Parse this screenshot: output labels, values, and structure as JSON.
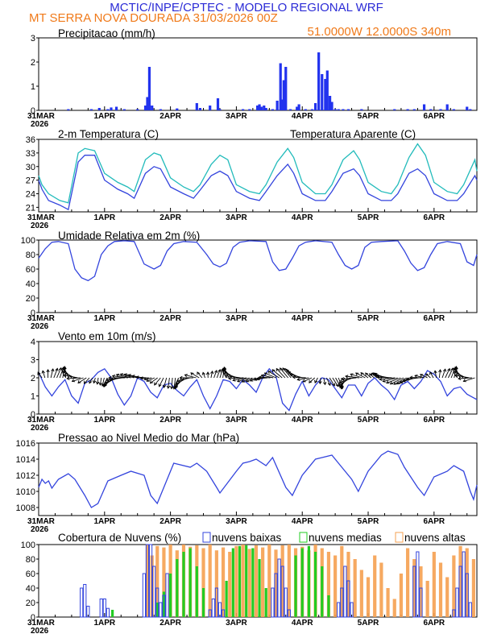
{
  "header": {
    "line1": "MCTIC/INPE/CPTEC - MODELO REGIONAL WRF",
    "line2": "MT SERRA NOVA DOURADA       31/03/2026 00Z",
    "coords": "51.0000W 12.0000S 340m"
  },
  "colors": {
    "header_blue": "#2b2bd6",
    "header_orange": "#f07a1a",
    "series_blue": "#3344dd",
    "bar_blue": "#2233ee",
    "apparent_cyan": "#22bbbb",
    "low_clouds": "#3344dd",
    "mid_clouds": "#22cc22",
    "high_clouds": "#f5a050"
  },
  "x_axis": {
    "date_labels": [
      "31MAR",
      "1APR",
      "2APR",
      "3APR",
      "4APR",
      "5APR",
      "6APR"
    ],
    "year_label": "2026",
    "days_span": 6.65
  },
  "panels": {
    "precip": {
      "title": "Precipitacao (mm/h)",
      "yticks": [
        "0",
        "1",
        "2",
        "3"
      ]
    },
    "temp": {
      "title": "2-m Temperatura (C)",
      "legend": "Temperatura Aparente (C)",
      "yticks": [
        "21",
        "24",
        "27",
        "30",
        "33",
        "36"
      ]
    },
    "rh": {
      "title": "Umidade Relativa em 2m (%)",
      "yticks": [
        "0",
        "20",
        "40",
        "60",
        "80",
        "100"
      ]
    },
    "wind": {
      "title": "Vento em 10m (m/s)",
      "yticks": [
        "0",
        "1",
        "2",
        "3",
        "4"
      ]
    },
    "press": {
      "title": "Pressao ao Nivel Medio do Mar (hPa)",
      "yticks": [
        "1008",
        "1010",
        "1012",
        "1014",
        "1016"
      ]
    },
    "cloud": {
      "title": "Cobertura de Nuvens (%)",
      "legend_low": "nuvens baixas",
      "legend_mid": "nuvens medias",
      "legend_high": "nuvens altas",
      "yticks": [
        "0",
        "20",
        "40",
        "60",
        "80",
        "100"
      ]
    }
  },
  "chart_data": [
    {
      "type": "bar",
      "title": "Precipitacao (mm/h)",
      "units": "mm/h",
      "ylim": [
        0,
        3
      ],
      "x_unit": "days since 31MAR 00Z",
      "x": [
        0.45,
        0.8,
        0.92,
        1.05,
        1.1,
        1.18,
        1.3,
        1.5,
        1.62,
        1.65,
        1.68,
        1.72,
        1.85,
        2.1,
        2.4,
        2.45,
        2.6,
        2.72,
        2.75,
        3.1,
        3.2,
        3.32,
        3.35,
        3.38,
        3.42,
        3.45,
        3.55,
        3.62,
        3.67,
        3.7,
        3.72,
        3.75,
        3.82,
        3.92,
        3.95,
        4.05,
        4.15,
        4.2,
        4.25,
        4.3,
        4.35,
        4.38,
        4.42,
        4.45,
        4.5,
        4.55,
        4.62,
        4.7,
        4.9,
        5.4,
        5.6,
        5.7,
        5.85,
        5.95,
        6.1,
        6.2,
        6.3,
        6.5,
        6.55
      ],
      "values": [
        0.05,
        0.05,
        0.1,
        0.05,
        0.12,
        0.15,
        0.05,
        0.05,
        0.2,
        0.55,
        1.8,
        0.2,
        0.05,
        0.08,
        0.3,
        0.1,
        0.2,
        0.5,
        0.05,
        0.05,
        0.05,
        0.2,
        0.25,
        0.15,
        0.2,
        0.1,
        0.05,
        0.4,
        1.95,
        0.45,
        1.25,
        1.8,
        0.05,
        0.15,
        0.25,
        0.05,
        0.05,
        0.3,
        2.4,
        1.5,
        1.3,
        1.65,
        0.6,
        0.35,
        0.05,
        0.05,
        0.05,
        0.05,
        0.05,
        0.05,
        0.05,
        0.05,
        0.25,
        0.05,
        0.05,
        0.25,
        0.05,
        0.15,
        0.05
      ]
    },
    {
      "type": "line",
      "title": "2-m Temperatura (C)",
      "ylim": [
        20,
        36
      ],
      "series": [
        {
          "name": "2-m Temperatura (C)",
          "x": [
            0,
            0.05,
            0.15,
            0.32,
            0.45,
            0.6,
            0.7,
            0.85,
            1.0,
            1.2,
            1.35,
            1.45,
            1.62,
            1.75,
            1.85,
            2.0,
            2.2,
            2.35,
            2.45,
            2.62,
            2.75,
            2.87,
            3.0,
            3.2,
            3.35,
            3.45,
            3.62,
            3.78,
            3.87,
            4.0,
            4.2,
            4.35,
            4.45,
            4.62,
            4.78,
            4.87,
            5.0,
            5.2,
            5.35,
            5.45,
            5.62,
            5.75,
            5.87,
            6.0,
            6.2,
            6.35,
            6.45,
            6.62,
            6.65
          ],
          "values": [
            27,
            25,
            22.5,
            21.5,
            20.5,
            31,
            32.5,
            32.5,
            27,
            25,
            24,
            23,
            28.5,
            30,
            29.5,
            25.5,
            24,
            23,
            24.8,
            28,
            29,
            28,
            24.5,
            23,
            22.5,
            24.5,
            28,
            30.5,
            28.5,
            24,
            22.5,
            22.5,
            24.5,
            28.5,
            29.5,
            28,
            24,
            22.5,
            22.5,
            24,
            28.5,
            29.5,
            28,
            24,
            22.5,
            22.5,
            24,
            28,
            27
          ]
        },
        {
          "name": "Temperatura Aparente (C)",
          "x": [
            0,
            0.05,
            0.15,
            0.32,
            0.45,
            0.6,
            0.7,
            0.85,
            1.0,
            1.2,
            1.35,
            1.45,
            1.62,
            1.75,
            1.85,
            2.0,
            2.2,
            2.35,
            2.45,
            2.62,
            2.75,
            2.87,
            3.0,
            3.2,
            3.35,
            3.45,
            3.62,
            3.78,
            3.87,
            4.0,
            4.2,
            4.35,
            4.45,
            4.62,
            4.78,
            4.87,
            5.0,
            5.2,
            5.35,
            5.45,
            5.62,
            5.75,
            5.87,
            6.0,
            6.2,
            6.35,
            6.45,
            6.62,
            6.65
          ],
          "values": [
            28,
            26,
            24,
            22.5,
            22,
            33,
            34,
            33.5,
            28.5,
            26.5,
            25.5,
            24.5,
            31.5,
            33,
            32.5,
            27.5,
            25.5,
            24.5,
            26,
            30.5,
            32.5,
            31.5,
            26,
            24.5,
            24,
            26,
            31,
            34,
            32,
            26.5,
            24,
            24,
            26,
            31.5,
            33.5,
            31.5,
            26.5,
            24.5,
            24,
            26,
            32,
            35,
            32.5,
            26.5,
            24.5,
            24,
            26,
            31.5,
            29
          ]
        }
      ]
    },
    {
      "type": "line",
      "title": "Umidade Relativa em 2m (%)",
      "ylim": [
        0,
        100
      ],
      "x": [
        0,
        0.1,
        0.2,
        0.3,
        0.45,
        0.55,
        0.65,
        0.75,
        0.85,
        0.95,
        1.05,
        1.15,
        1.3,
        1.45,
        1.6,
        1.75,
        1.85,
        1.95,
        2.05,
        2.2,
        2.4,
        2.55,
        2.65,
        2.75,
        2.85,
        2.95,
        3.05,
        3.2,
        3.45,
        3.55,
        3.65,
        3.75,
        3.85,
        3.95,
        4.05,
        4.2,
        4.45,
        4.55,
        4.65,
        4.75,
        4.85,
        4.95,
        5.05,
        5.2,
        5.45,
        5.55,
        5.65,
        5.75,
        5.85,
        5.95,
        6.05,
        6.2,
        6.4,
        6.5,
        6.6,
        6.65
      ],
      "values": [
        75,
        88,
        97,
        98,
        95,
        60,
        48,
        44,
        50,
        80,
        92,
        98,
        99,
        98,
        67,
        60,
        65,
        85,
        95,
        98,
        97,
        80,
        67,
        63,
        68,
        90,
        97,
        99,
        98,
        70,
        58,
        60,
        75,
        92,
        97,
        99,
        97,
        80,
        65,
        60,
        65,
        90,
        97,
        98,
        99,
        85,
        68,
        58,
        62,
        80,
        95,
        98,
        95,
        70,
        65,
        80
      ]
    },
    {
      "type": "line",
      "title": "Vento em 10m (m/s)",
      "ylim": [
        0,
        4
      ],
      "x": [
        0,
        0.1,
        0.2,
        0.3,
        0.4,
        0.5,
        0.6,
        0.7,
        0.8,
        0.9,
        1.0,
        1.1,
        1.2,
        1.3,
        1.4,
        1.5,
        1.6,
        1.7,
        1.8,
        1.9,
        2.0,
        2.1,
        2.2,
        2.3,
        2.4,
        2.5,
        2.6,
        2.7,
        2.8,
        2.9,
        3.0,
        3.1,
        3.2,
        3.3,
        3.4,
        3.5,
        3.6,
        3.7,
        3.8,
        3.9,
        4.0,
        4.1,
        4.2,
        4.3,
        4.4,
        4.5,
        4.6,
        4.7,
        4.8,
        4.9,
        5.0,
        5.1,
        5.2,
        5.3,
        5.4,
        5.5,
        5.6,
        5.7,
        5.8,
        5.9,
        6.0,
        6.1,
        6.2,
        6.3,
        6.4,
        6.5,
        6.6,
        6.65
      ],
      "values": [
        2.3,
        1.5,
        1.0,
        1.5,
        1.9,
        1.0,
        0.6,
        1.7,
        1.9,
        2.3,
        2.5,
        2.0,
        1.1,
        0.5,
        1.0,
        2.0,
        1.8,
        1.2,
        0.9,
        1.6,
        1.7,
        1.3,
        1.0,
        1.5,
        1.9,
        1.0,
        0.3,
        1.0,
        1.9,
        1.8,
        1.4,
        1.9,
        1.6,
        1.2,
        2.0,
        2.5,
        2.1,
        0.6,
        0.2,
        1.1,
        1.8,
        1.0,
        1.6,
        2.0,
        1.9,
        1.4,
        0.9,
        1.6,
        1.6,
        1.0,
        1.7,
        2.0,
        1.6,
        1.3,
        0.8,
        1.6,
        1.8,
        1.4,
        1.8,
        2.4,
        2.2,
        1.8,
        1.0,
        1.4,
        1.5,
        1.1,
        0.9,
        0.8
      ]
    },
    {
      "type": "line",
      "title": "Pressao ao Nivel Medio do Mar (hPa)",
      "ylim": [
        1007,
        1016
      ],
      "x": [
        0,
        0.05,
        0.1,
        0.15,
        0.2,
        0.3,
        0.45,
        0.55,
        0.7,
        0.8,
        0.9,
        1.05,
        1.25,
        1.4,
        1.6,
        1.7,
        1.8,
        1.95,
        2.05,
        2.3,
        2.4,
        2.55,
        2.7,
        2.75,
        3.0,
        3.1,
        3.2,
        3.3,
        3.45,
        3.55,
        3.75,
        3.85,
        4.0,
        4.2,
        4.3,
        4.45,
        4.55,
        4.75,
        4.85,
        5.0,
        5.2,
        5.3,
        5.45,
        5.55,
        5.75,
        5.85,
        6.0,
        6.2,
        6.3,
        6.45,
        6.55,
        6.6,
        6.65
      ],
      "values": [
        1010.5,
        1011.5,
        1011,
        1011.3,
        1010.4,
        1011.5,
        1012.2,
        1011.5,
        1009.5,
        1008,
        1008.5,
        1011.3,
        1012,
        1012.5,
        1012,
        1009.5,
        1008.5,
        1011.5,
        1013.5,
        1013,
        1013.5,
        1012.5,
        1010.5,
        1009.8,
        1012.5,
        1013.5,
        1013.7,
        1014,
        1013.2,
        1014.2,
        1010.5,
        1009.5,
        1012,
        1014,
        1014.2,
        1014.5,
        1013.5,
        1011.5,
        1010,
        1012.5,
        1014.5,
        1015,
        1014.6,
        1013,
        1010.5,
        1009.5,
        1011.8,
        1012.5,
        1013.2,
        1012.5,
        1010,
        1009,
        1010.8
      ]
    },
    {
      "type": "bar",
      "title": "Cobertura de Nuvens (%)",
      "ylim": [
        0,
        100
      ],
      "series": [
        {
          "name": "nuvens baixas",
          "x": [
            0.65,
            0.7,
            0.75,
            0.95,
            1.0,
            1.05,
            1.6,
            1.65,
            1.7,
            1.75,
            1.8,
            1.85,
            1.9,
            1.95,
            2.6,
            2.65,
            2.7,
            2.75,
            2.8,
            3.55,
            3.6,
            3.65,
            3.7,
            3.75,
            3.8,
            4.55,
            4.6,
            4.65,
            4.7,
            4.75,
            5.7,
            5.75,
            5.8,
            6.3,
            6.35,
            6.4,
            6.45,
            6.5,
            6.55
          ],
          "values": [
            40,
            45,
            15,
            25,
            25,
            12,
            60,
            100,
            100,
            70,
            40,
            20,
            30,
            60,
            10,
            25,
            40,
            20,
            10,
            40,
            60,
            80,
            70,
            40,
            10,
            20,
            40,
            70,
            50,
            20,
            70,
            90,
            40,
            10,
            40,
            70,
            90,
            60,
            20
          ]
        },
        {
          "name": "nuvens medias",
          "x": [
            1.12,
            1.8,
            1.9,
            2.0,
            2.1,
            2.2,
            2.3,
            2.4,
            2.5,
            2.85,
            2.95,
            3.05,
            3.15,
            3.25,
            3.35,
            3.45,
            3.9,
            4.0,
            4.1,
            4.2,
            4.3,
            4.4
          ],
          "values": [
            10,
            20,
            35,
            60,
            80,
            90,
            95,
            70,
            40,
            50,
            95,
            98,
            99,
            95,
            80,
            40,
            85,
            95,
            98,
            90,
            70,
            30
          ]
        },
        {
          "name": "nuvens altas",
          "x": [
            1.65,
            1.72,
            1.8,
            1.9,
            2.0,
            2.1,
            2.2,
            2.3,
            2.4,
            2.5,
            2.6,
            2.7,
            2.8,
            2.9,
            3.0,
            3.1,
            3.2,
            3.3,
            3.4,
            3.5,
            3.6,
            3.7,
            3.8,
            3.9,
            4.0,
            4.1,
            4.2,
            4.3,
            4.4,
            4.5,
            4.6,
            4.7,
            4.8,
            4.9,
            5.0,
            5.1,
            5.2,
            5.3,
            5.4,
            5.5,
            5.6,
            5.7,
            5.8,
            5.9,
            6.0,
            6.1,
            6.2,
            6.3,
            6.4,
            6.5,
            6.6
          ],
          "values": [
            100,
            85,
            98,
            96,
            100,
            92,
            100,
            97,
            99,
            95,
            100,
            92,
            96,
            90,
            98,
            100,
            94,
            99,
            96,
            100,
            93,
            99,
            100,
            95,
            97,
            92,
            100,
            95,
            90,
            85,
            98,
            90,
            80,
            65,
            55,
            85,
            75,
            40,
            25,
            60,
            95,
            80,
            70,
            50,
            90,
            75,
            55,
            85,
            98,
            95,
            80
          ]
        }
      ]
    }
  ]
}
